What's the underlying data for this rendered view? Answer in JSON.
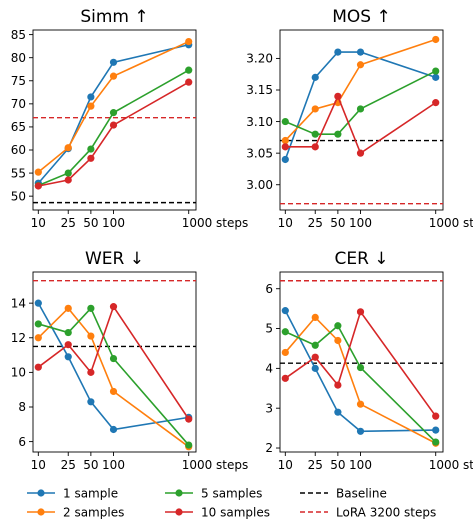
{
  "colors": {
    "1 sample": "#1f77b4",
    "2 samples": "#ff7f0e",
    "5 samples": "#2ca02c",
    "10 samples": "#d62728",
    "baseline": "#000000",
    "lora": "#d62728"
  },
  "x_scale": "log",
  "x_ticks": [
    10,
    25,
    50,
    100,
    1000
  ],
  "x_tick_labels": [
    "10",
    "25",
    "50",
    "100",
    "1000 steps"
  ],
  "legend": {
    "placement": "bottom",
    "entries": [
      {
        "key": "1 sample",
        "label": "1 sample",
        "style": "line-marker"
      },
      {
        "key": "2 samples",
        "label": "2 samples",
        "style": "line-marker"
      },
      {
        "key": "5 samples",
        "label": "5 samples",
        "style": "line-marker"
      },
      {
        "key": "10 samples",
        "label": "10 samples",
        "style": "line-marker"
      },
      {
        "key": "baseline",
        "label": "Baseline",
        "style": "dashed"
      },
      {
        "key": "lora",
        "label": "LoRA 3200 steps",
        "style": "dashed"
      }
    ]
  },
  "chart_data": [
    {
      "type": "line",
      "title": "Simm ↑",
      "x": [
        10,
        25,
        50,
        100,
        1000
      ],
      "ylim": [
        47,
        86
      ],
      "y_ticks": [
        50,
        55,
        60,
        65,
        70,
        75,
        80,
        85
      ],
      "series": [
        {
          "name": "1 sample",
          "values": [
            52.8,
            60.3,
            71.5,
            79.0,
            82.8
          ]
        },
        {
          "name": "2 samples",
          "values": [
            55.2,
            60.5,
            69.5,
            76.0,
            83.5
          ]
        },
        {
          "name": "5 samples",
          "values": [
            52.3,
            55.0,
            60.2,
            68.1,
            77.3
          ]
        },
        {
          "name": "10 samples",
          "values": [
            52.2,
            53.5,
            58.2,
            65.4,
            74.7
          ]
        }
      ],
      "baseline": 48.6,
      "lora": 67.0
    },
    {
      "type": "line",
      "title": "MOS ↑",
      "x": [
        10,
        25,
        50,
        100,
        1000
      ],
      "ylim": [
        2.96,
        3.245
      ],
      "y_ticks": [
        3.0,
        3.05,
        3.1,
        3.15,
        3.2
      ],
      "y_tick_labels": [
        "3.00",
        "3.05",
        "3.10",
        "3.15",
        "3.20"
      ],
      "series": [
        {
          "name": "1 sample",
          "values": [
            3.04,
            3.17,
            3.21,
            3.21,
            3.17
          ]
        },
        {
          "name": "2 samples",
          "values": [
            3.07,
            3.12,
            3.13,
            3.19,
            3.23
          ]
        },
        {
          "name": "5 samples",
          "values": [
            3.1,
            3.08,
            3.08,
            3.12,
            3.18
          ]
        },
        {
          "name": "10 samples",
          "values": [
            3.06,
            3.06,
            3.14,
            3.05,
            3.13
          ]
        }
      ],
      "baseline": 3.07,
      "lora": 2.97
    },
    {
      "type": "line",
      "title": "WER ↓",
      "x": [
        10,
        25,
        50,
        100,
        1000
      ],
      "ylim": [
        5.4,
        15.8
      ],
      "y_ticks": [
        6,
        8,
        10,
        12,
        14
      ],
      "series": [
        {
          "name": "1 sample",
          "values": [
            14.0,
            10.9,
            8.3,
            6.7,
            7.4
          ]
        },
        {
          "name": "2 samples",
          "values": [
            12.0,
            13.7,
            12.1,
            8.9,
            5.7
          ]
        },
        {
          "name": "5 samples",
          "values": [
            12.8,
            12.3,
            13.7,
            10.8,
            5.8
          ]
        },
        {
          "name": "10 samples",
          "values": [
            10.3,
            11.6,
            10.0,
            13.8,
            7.3
          ]
        }
      ],
      "baseline": 11.5,
      "lora": 15.3
    },
    {
      "type": "line",
      "title": "CER ↓",
      "x": [
        10,
        25,
        50,
        100,
        1000
      ],
      "ylim": [
        1.9,
        6.42
      ],
      "y_ticks": [
        2,
        3,
        4,
        5,
        6
      ],
      "series": [
        {
          "name": "1 sample",
          "values": [
            5.45,
            4.0,
            2.9,
            2.42,
            2.45
          ]
        },
        {
          "name": "2 samples",
          "values": [
            4.4,
            5.28,
            4.7,
            3.1,
            2.12
          ]
        },
        {
          "name": "5 samples",
          "values": [
            4.92,
            4.58,
            5.07,
            4.02,
            2.15
          ]
        },
        {
          "name": "10 samples",
          "values": [
            3.75,
            4.28,
            3.58,
            5.42,
            2.8
          ]
        }
      ],
      "baseline": 4.13,
      "lora": 6.2
    }
  ]
}
